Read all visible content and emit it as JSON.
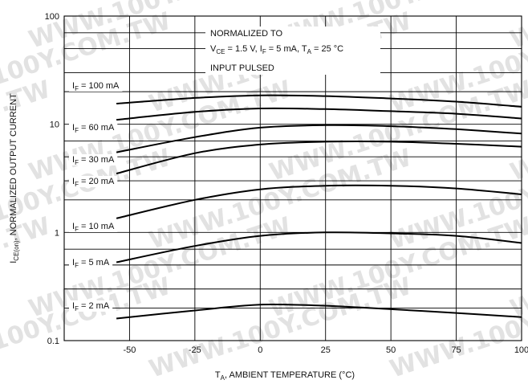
{
  "chart_data": {
    "type": "line",
    "title": "",
    "xlabel": "T",
    "xlabel_sub": "A",
    "xlabel_rest": ", AMBIENT TEMPERATURE (°C)",
    "ylabel": "I",
    "ylabel_sub": "CE(on)",
    "ylabel_rest": ", NORMALIZED OUTPUT CURRENT",
    "xlim": [
      -75,
      100
    ],
    "ylim": [
      0.1,
      100
    ],
    "yscale": "log",
    "grid": true,
    "x_ticks": [
      "-50",
      "-25",
      "0",
      "25",
      "50",
      "75",
      "100"
    ],
    "y_ticks": [
      {
        "value": 0.1,
        "label": "0.1"
      },
      {
        "value": 1,
        "label": "1"
      },
      {
        "value": 10,
        "label": "10"
      },
      {
        "value": 100,
        "label": "100"
      }
    ],
    "annotation": {
      "line1": "NORMALIZED TO",
      "line2": {
        "v": "V",
        "v_sub": "CE",
        "v_val": " = 1.5 V,  I",
        "i_sub": "F",
        "i_val": " = 5 mA, T",
        "t_sub": "A",
        "t_val": " = 25 °C"
      },
      "line3": "INPUT PULSED"
    },
    "series": [
      {
        "name": "I",
        "sub": "F",
        "rest": " = 100 mA",
        "x": [
          -55,
          -25,
          0,
          25,
          50,
          75,
          100
        ],
        "y": [
          15.5,
          17.5,
          18.5,
          18.2,
          17.3,
          16.2,
          14.5
        ]
      },
      {
        "name": "I",
        "sub": "F",
        "rest": " = 60 mA",
        "x": [
          -55,
          -25,
          0,
          25,
          50,
          75,
          100
        ],
        "y": [
          11,
          13,
          14,
          13.8,
          13.2,
          12.5,
          11.3
        ]
      },
      {
        "name": "I",
        "sub": "F",
        "rest": " = 30 mA",
        "x": [
          -55,
          -25,
          0,
          25,
          50,
          75,
          100
        ],
        "y": [
          5.5,
          7.6,
          9.3,
          9.8,
          9.6,
          9.0,
          8.2
        ]
      },
      {
        "name": "I",
        "sub": "F",
        "rest": " = 20 mA",
        "x": [
          -55,
          -25,
          0,
          25,
          50,
          75,
          100
        ],
        "y": [
          3.5,
          5.4,
          6.5,
          6.9,
          6.9,
          6.6,
          6.2
        ]
      },
      {
        "name": "I",
        "sub": "F",
        "rest": " = 10 mA",
        "x": [
          -55,
          -25,
          0,
          25,
          50,
          75,
          100
        ],
        "y": [
          1.35,
          2.0,
          2.5,
          2.7,
          2.7,
          2.55,
          2.25
        ]
      },
      {
        "name": "I",
        "sub": "F",
        "rest": " = 5 mA",
        "x": [
          -55,
          -25,
          0,
          25,
          50,
          75,
          100
        ],
        "y": [
          0.53,
          0.75,
          0.93,
          1.0,
          0.98,
          0.93,
          0.8
        ]
      },
      {
        "name": "I",
        "sub": "F",
        "rest": " = 2 mA",
        "x": [
          -55,
          -25,
          0,
          25,
          50,
          75,
          100
        ],
        "y": [
          0.16,
          0.19,
          0.215,
          0.21,
          0.195,
          0.18,
          0.165
        ]
      }
    ],
    "watermark": "WWW.100Y.COM.TW"
  }
}
